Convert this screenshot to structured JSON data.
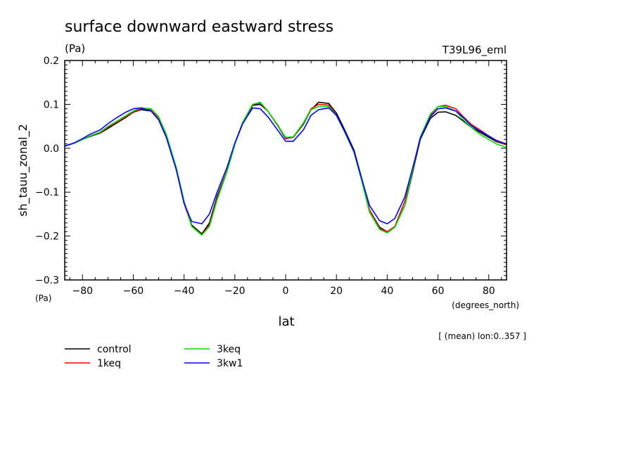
{
  "chart_data": {
    "type": "line",
    "title": "surface downward eastward stress",
    "units_top": "(Pa)",
    "experiment": "T39L96_eml",
    "ylabel": "sh_tauu_zonal_2",
    "units_bottom": "(Pa)",
    "xlabel": "lat",
    "xunits": "(degrees_north)",
    "note": "[ (mean) lon:0..357 ]",
    "xlim": [
      -87,
      87
    ],
    "ylim": [
      -0.3,
      0.2
    ],
    "xticks": [
      -80,
      -60,
      -40,
      -20,
      0,
      20,
      40,
      60,
      80
    ],
    "xtick_labels": [
      "−80",
      "−60",
      "−40",
      "−20",
      "0",
      "20",
      "40",
      "60",
      "80"
    ],
    "yticks": [
      -0.3,
      -0.2,
      -0.1,
      0.0,
      0.1,
      0.2
    ],
    "ytick_labels": [
      "−0.3",
      "−0.2",
      "−0.1",
      "0.0",
      "0.1",
      "0.2"
    ],
    "grid": false,
    "legend_position": "bottom-left",
    "x": [
      -87,
      -83,
      -80,
      -77,
      -73,
      -70,
      -67,
      -63,
      -60,
      -57,
      -53,
      -50,
      -47,
      -43,
      -40,
      -37,
      -33,
      -30,
      -27,
      -23,
      -20,
      -17,
      -13,
      -10,
      -7,
      -3,
      0,
      3,
      7,
      10,
      13,
      17,
      20,
      23,
      27,
      30,
      33,
      37,
      40,
      43,
      47,
      50,
      53,
      57,
      60,
      63,
      67,
      70,
      73,
      77,
      80,
      83,
      87
    ],
    "series": [
      {
        "name": "control",
        "color": "#000000",
        "values": [
          0.005,
          0.012,
          0.02,
          0.027,
          0.035,
          0.045,
          0.056,
          0.07,
          0.082,
          0.088,
          0.085,
          0.065,
          0.025,
          -0.05,
          -0.125,
          -0.175,
          -0.195,
          -0.17,
          -0.11,
          -0.05,
          0.01,
          0.055,
          0.098,
          0.1,
          0.085,
          0.05,
          0.022,
          0.025,
          0.055,
          0.088,
          0.105,
          0.102,
          0.08,
          0.045,
          -0.005,
          -0.07,
          -0.14,
          -0.18,
          -0.19,
          -0.18,
          -0.13,
          -0.055,
          0.02,
          0.068,
          0.082,
          0.083,
          0.075,
          0.062,
          0.048,
          0.035,
          0.025,
          0.015,
          0.008
        ]
      },
      {
        "name": "1keq",
        "color": "#ff0000",
        "values": [
          0.005,
          0.012,
          0.02,
          0.028,
          0.036,
          0.048,
          0.058,
          0.072,
          0.083,
          0.09,
          0.088,
          0.07,
          0.03,
          -0.05,
          -0.125,
          -0.178,
          -0.197,
          -0.175,
          -0.115,
          -0.05,
          0.01,
          0.058,
          0.1,
          0.103,
          0.085,
          0.052,
          0.023,
          0.025,
          0.057,
          0.09,
          0.1,
          0.098,
          0.075,
          0.04,
          -0.01,
          -0.075,
          -0.14,
          -0.183,
          -0.19,
          -0.178,
          -0.12,
          -0.05,
          0.025,
          0.075,
          0.095,
          0.098,
          0.09,
          0.072,
          0.055,
          0.04,
          0.028,
          0.017,
          0.008
        ]
      },
      {
        "name": "3keq",
        "color": "#00dd00",
        "values": [
          0.005,
          0.012,
          0.02,
          0.028,
          0.037,
          0.05,
          0.06,
          0.074,
          0.085,
          0.092,
          0.09,
          0.072,
          0.032,
          -0.045,
          -0.12,
          -0.178,
          -0.198,
          -0.178,
          -0.118,
          -0.052,
          0.008,
          0.058,
          0.1,
          0.105,
          0.085,
          0.05,
          0.025,
          0.026,
          0.058,
          0.088,
          0.095,
          0.095,
          0.075,
          0.04,
          -0.01,
          -0.075,
          -0.145,
          -0.185,
          -0.193,
          -0.18,
          -0.13,
          -0.05,
          0.025,
          0.078,
          0.095,
          0.095,
          0.085,
          0.065,
          0.048,
          0.03,
          0.02,
          0.01,
          0.002
        ]
      },
      {
        "name": "3kw1",
        "color": "#0000ff",
        "values": [
          0.005,
          0.013,
          0.022,
          0.032,
          0.042,
          0.056,
          0.068,
          0.082,
          0.09,
          0.092,
          0.085,
          0.065,
          0.025,
          -0.05,
          -0.125,
          -0.167,
          -0.172,
          -0.15,
          -0.1,
          -0.042,
          0.012,
          0.055,
          0.092,
          0.09,
          0.072,
          0.04,
          0.016,
          0.016,
          0.042,
          0.075,
          0.088,
          0.092,
          0.075,
          0.042,
          -0.008,
          -0.07,
          -0.13,
          -0.165,
          -0.172,
          -0.16,
          -0.11,
          -0.045,
          0.022,
          0.072,
          0.09,
          0.092,
          0.085,
          0.07,
          0.052,
          0.038,
          0.028,
          0.018,
          0.01
        ]
      }
    ]
  }
}
